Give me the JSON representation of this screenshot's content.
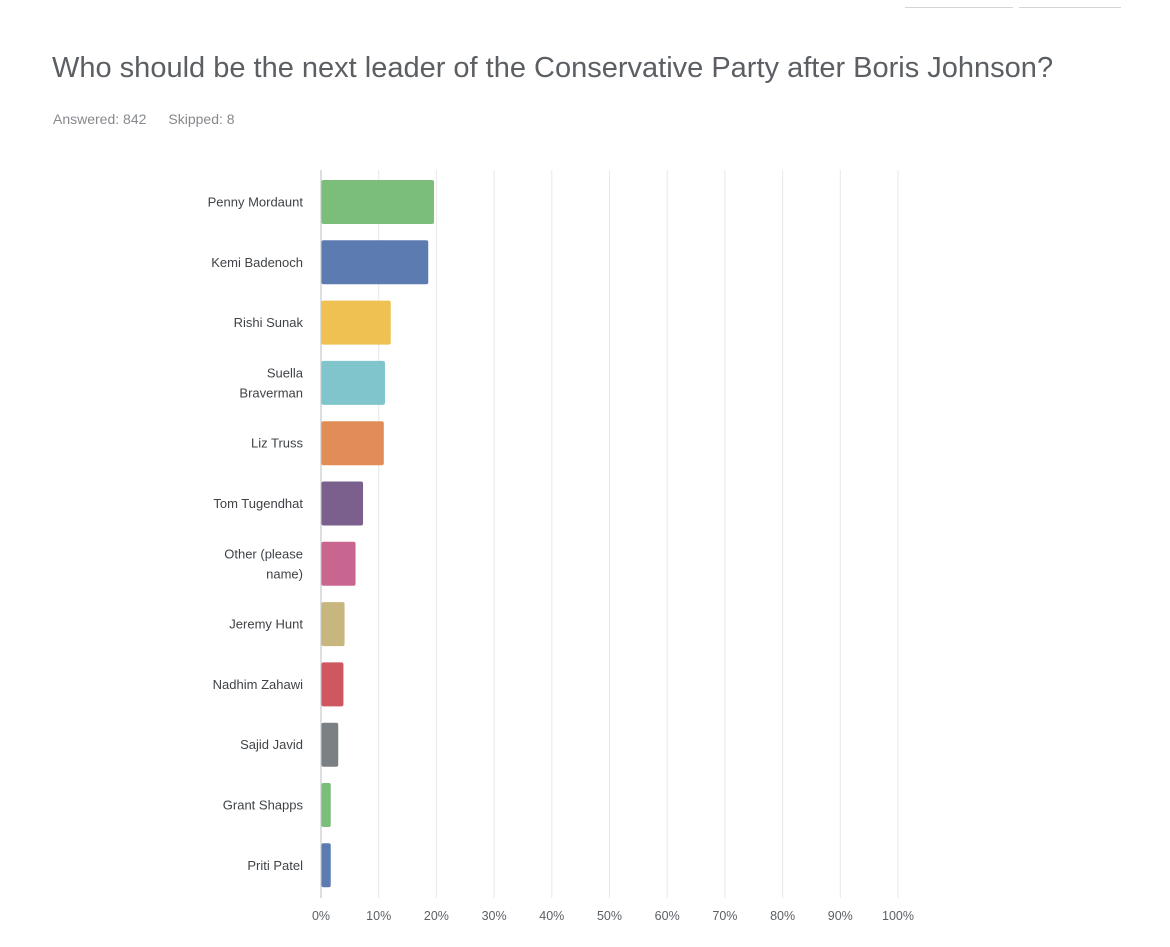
{
  "question": {
    "title": "Who should be the next leader of the Conservative Party after Boris Johnson?",
    "answered_label": "Answered: 842",
    "skipped_label": "Skipped: 8"
  },
  "chart_data": {
    "type": "bar",
    "orientation": "horizontal",
    "categories": [
      [
        "Penny Mordaunt"
      ],
      [
        "Kemi Badenoch"
      ],
      [
        "Rishi Sunak"
      ],
      [
        "Suella",
        "Braverman"
      ],
      [
        "Liz Truss"
      ],
      [
        "Tom Tugendhat"
      ],
      [
        "Other (please",
        "name)"
      ],
      [
        "Jeremy Hunt"
      ],
      [
        "Nadhim Zahawi"
      ],
      [
        "Sajid Javid"
      ],
      [
        "Grant Shapps"
      ],
      [
        "Priti Patel"
      ]
    ],
    "values": [
      19.5,
      18.5,
      12,
      11,
      10.8,
      7.2,
      5.9,
      4,
      3.8,
      2.9,
      1.6,
      1.6
    ],
    "colors": [
      "#7bbe7a",
      "#5b7bb1",
      "#efc052",
      "#80c5cb",
      "#e28d57",
      "#7b5f8c",
      "#c96690",
      "#c7b77f",
      "#cf5760",
      "#7b8084",
      "#7bbe7a",
      "#5b7bb1"
    ],
    "xlim": [
      0,
      100
    ],
    "xticks": [
      0,
      10,
      20,
      30,
      40,
      50,
      60,
      70,
      80,
      90,
      100
    ],
    "xtick_labels": [
      "0%",
      "10%",
      "20%",
      "30%",
      "40%",
      "50%",
      "60%",
      "70%",
      "80%",
      "90%",
      "100%"
    ],
    "grid": true,
    "legend": "none"
  }
}
